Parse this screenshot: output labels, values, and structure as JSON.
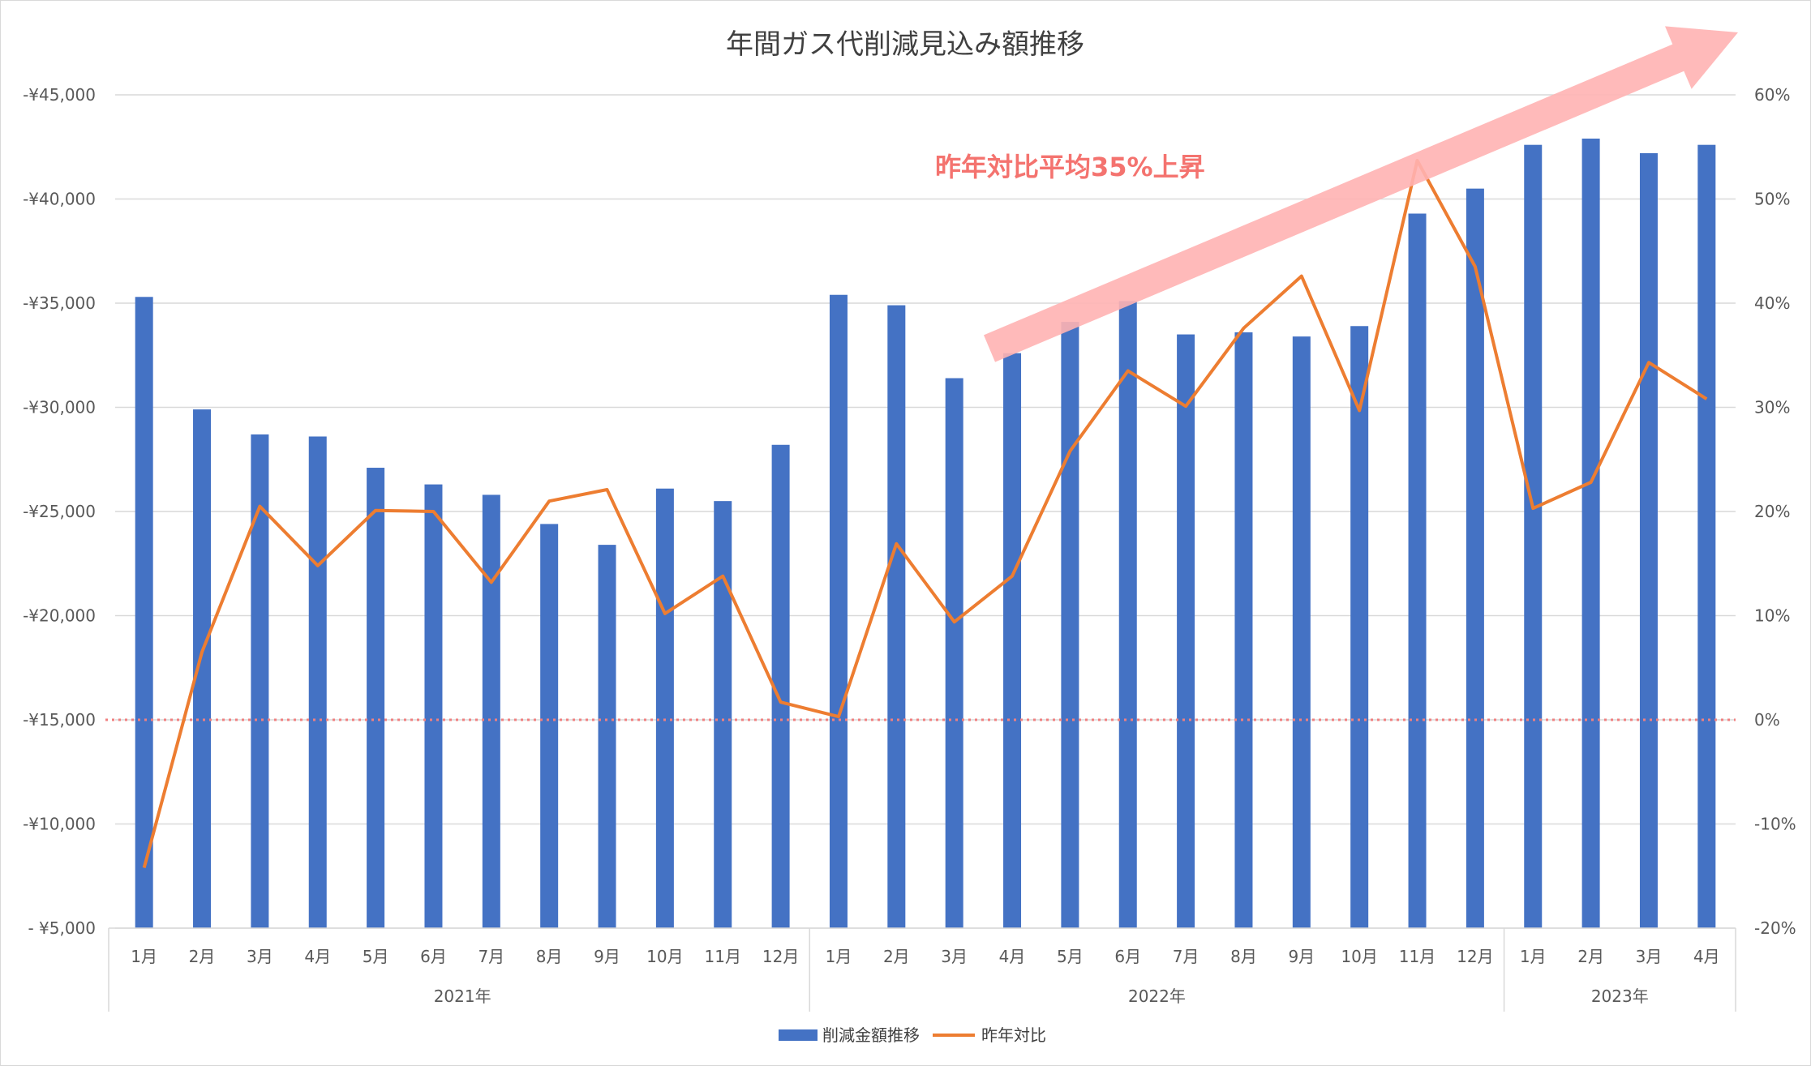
{
  "chart_data": {
    "type": "bar",
    "title": "年間ガス代削減見込み額推移",
    "categories": [
      "1月",
      "2月",
      "3月",
      "4月",
      "5月",
      "6月",
      "7月",
      "8月",
      "9月",
      "10月",
      "11月",
      "12月",
      "1月",
      "2月",
      "3月",
      "4月",
      "5月",
      "6月",
      "7月",
      "8月",
      "9月",
      "10月",
      "11月",
      "12月",
      "1月",
      "2月",
      "3月",
      "4月"
    ],
    "year_groups": [
      {
        "label": "2021年",
        "start": 0,
        "end": 11
      },
      {
        "label": "2022年",
        "start": 12,
        "end": 23
      },
      {
        "label": "2023年",
        "start": 24,
        "end": 27
      }
    ],
    "series": [
      {
        "name": "削減金額推移",
        "type": "bar",
        "axis": "left",
        "color": "#4472C4",
        "values": [
          35300,
          29900,
          28700,
          28600,
          27100,
          26300,
          25800,
          24400,
          23400,
          26100,
          25500,
          28200,
          35400,
          34900,
          31400,
          32600,
          34100,
          35100,
          33500,
          33600,
          33400,
          33900,
          39300,
          40500,
          42600,
          42900,
          42200,
          42600
        ]
      },
      {
        "name": "昨年対比",
        "type": "line",
        "axis": "right",
        "color": "#ED7D31",
        "values": [
          -14.2,
          6.5,
          20.5,
          14.8,
          20.1,
          20.0,
          13.2,
          21.0,
          22.1,
          10.2,
          13.8,
          1.7,
          0.3,
          16.9,
          9.4,
          13.8,
          25.8,
          33.5,
          30.1,
          37.6,
          42.6,
          29.7,
          53.7,
          43.5,
          20.3,
          22.8,
          34.3,
          30.8
        ]
      }
    ],
    "y_left": {
      "ylim": [
        5000,
        45000
      ],
      "ticks": [
        45000,
        40000,
        35000,
        30000,
        25000,
        20000,
        15000,
        10000,
        5000
      ],
      "tick_labels": [
        "-¥45,000",
        "-¥40,000",
        "-¥35,000",
        "-¥30,000",
        "-¥25,000",
        "-¥20,000",
        "-¥15,000",
        "-¥10,000",
        "- ¥5,000"
      ]
    },
    "y_right": {
      "ylim": [
        -20,
        60
      ],
      "ticks": [
        60,
        50,
        40,
        30,
        20,
        10,
        0,
        -10,
        -20
      ],
      "tick_labels": [
        "60%",
        "50%",
        "40%",
        "30%",
        "20%",
        "10%",
        "0%",
        "-10%",
        "-20%"
      ]
    },
    "reference_line": {
      "axis": "right",
      "value": 0,
      "color": "#F08080",
      "style": "dotted"
    },
    "annotation": {
      "text": "昨年対比平均35%上昇",
      "color": "#F4736F"
    },
    "trend_arrow": {
      "color": "#FFB3B3"
    },
    "legend": {
      "position": "bottom",
      "items": [
        "削減金額推移",
        "昨年対比"
      ]
    },
    "grid": true
  }
}
